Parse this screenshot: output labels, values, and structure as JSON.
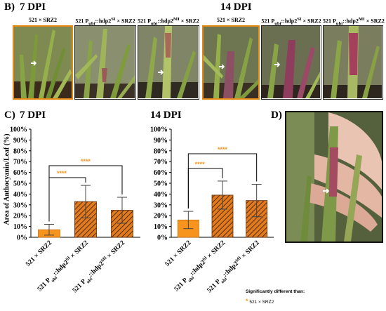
{
  "panel_b": {
    "letter": "B)",
    "dpi7": "7 DPI",
    "dpi14": "14 DPI",
    "photos": [
      {
        "label": "521 × SRZ2"
      },
      {
        "label": "521 Pubi::hdp2SI × SRZ2"
      },
      {
        "label": "521 Pubi::hdp2MI × SRZ2"
      },
      {
        "label": "521 × SRZ2"
      },
      {
        "label": "521 Pubi::hdp2SI × SRZ2"
      },
      {
        "label": "521 Pubi::hdp2MI × SRZ2"
      }
    ]
  },
  "panel_c": {
    "letter": "C)",
    "dpi7": "7 DPI",
    "dpi14": "14 DPI",
    "ylabel": "Area of Anthocyanin/Leaf (%)",
    "significance": "****"
  },
  "panel_d": {
    "letter": "D)"
  },
  "legend": {
    "title": "Significantly different than:",
    "symbol": "*",
    "item": "521 × SRZ2"
  },
  "colors": {
    "control_bar": "#f7941d",
    "hatched_bar_fill": "#e07b20",
    "hatch_stroke": "#5a2a08",
    "significance": "#f7941d",
    "control_photo_border": "#e58a17"
  },
  "chart_data": [
    {
      "type": "bar",
      "title": "7 DPI",
      "ylabel": "Area of Anthocyanin/Leaf (%)",
      "ylim": [
        0,
        100
      ],
      "yticks": [
        "0%",
        "10%",
        "20%",
        "30%",
        "40%",
        "50%",
        "60%",
        "70%",
        "80%",
        "90%",
        "100%"
      ],
      "categories": [
        "521 × SRZ2",
        "521 Pubi::hdp2SI × SRZ2",
        "521 Pubi::hdp2MI × SRZ2"
      ],
      "values": [
        7,
        33,
        25
      ],
      "errors": [
        5,
        15,
        12
      ],
      "significance": [
        {
          "from": 0,
          "to": 1,
          "label": "****"
        },
        {
          "from": 0,
          "to": 2,
          "label": "****"
        }
      ]
    },
    {
      "type": "bar",
      "title": "14 DPI",
      "ylabel": "",
      "ylim": [
        0,
        100
      ],
      "yticks": [
        "0%",
        "10%",
        "20%",
        "30%",
        "40%",
        "50%",
        "60%",
        "70%",
        "80%",
        "90%",
        "100%"
      ],
      "categories": [
        "521 × SRZ2",
        "521 Pubi::hdp2SI × SRZ2",
        "521 Pubi::hdp2MI × SRZ2"
      ],
      "values": [
        16,
        39,
        34
      ],
      "errors": [
        8,
        13,
        15
      ],
      "significance": [
        {
          "from": 0,
          "to": 1,
          "label": "****"
        },
        {
          "from": 0,
          "to": 2,
          "label": "****"
        }
      ]
    }
  ]
}
